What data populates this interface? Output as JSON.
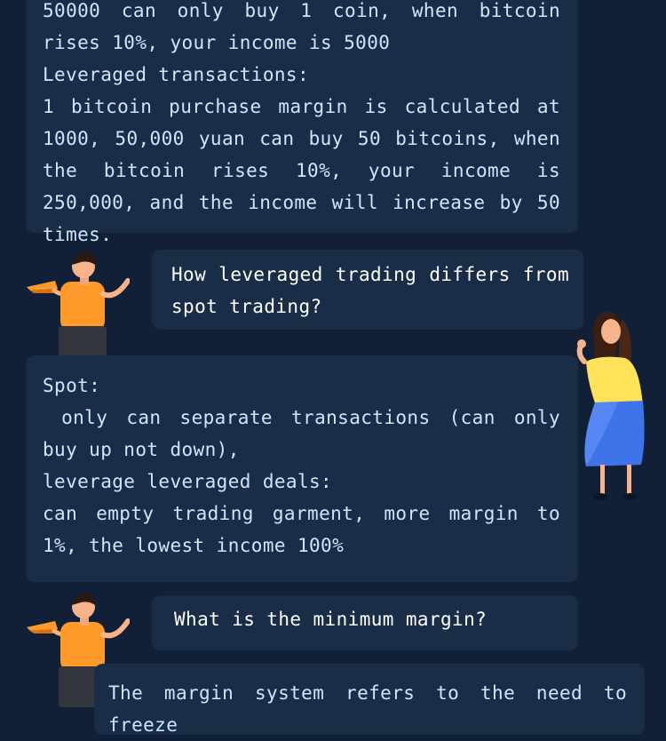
{
  "bubbles": {
    "spot_vs_leverage_example": {
      "lines": [
        "50000 can only buy 1 coin, when bitcoin rises 10%, your income is 5000",
        "Leveraged transactions:",
        "1 bitcoin purchase margin is calculated at 1000, 50,000 yuan can buy 50 bitcoins, when the bitcoin rises 10%, your income is 250,000, and the income will increase by 50 times."
      ]
    },
    "question_difference": {
      "text": "How leveraged trading differs from spot trading?"
    },
    "answer_difference": {
      "lines": [
        "Spot:",
        " only can separate transactions (can only buy up not down),",
        "leverage leveraged deals:",
        "can empty trading garment, more margin to 1%, the lowest income 100%"
      ]
    },
    "question_minimum_margin": {
      "text": "What is the minimum margin?"
    },
    "answer_margin_system": {
      "text": "The margin system refers to the need to freeze"
    }
  },
  "colors": {
    "background": "#112036",
    "bubble": "#1a2d47",
    "text": "#cfe4ff",
    "question_text": "#ffffff",
    "man_shirt": "#ff9a2a",
    "woman_top": "#ffe15a",
    "woman_skirt": "#3f74e8"
  }
}
